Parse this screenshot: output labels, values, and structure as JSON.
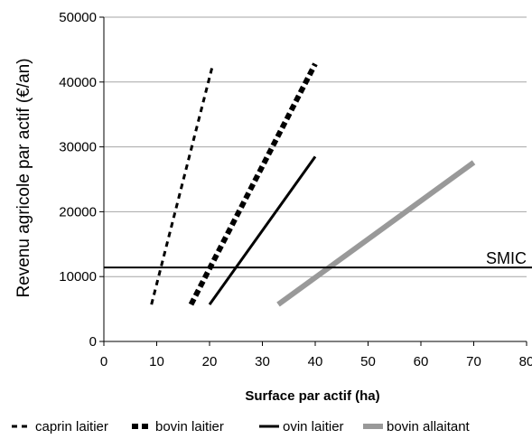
{
  "chart_data": {
    "type": "line",
    "xlabel": "Surface par actif (ha)",
    "ylabel": "Revenu agricole par actif (€/an)",
    "xlim": [
      0,
      80
    ],
    "ylim": [
      0,
      50000
    ],
    "x_ticks": [
      "0",
      "10",
      "20",
      "30",
      "40",
      "50",
      "60",
      "70",
      "80"
    ],
    "y_ticks": [
      "0",
      "10000",
      "20000",
      "30000",
      "40000",
      "50000"
    ],
    "grid": "horizontal",
    "legend_position": "bottom",
    "series": [
      {
        "name": "caprin laitier",
        "x": [
          9,
          20.5
        ],
        "y": [
          5700,
          42300
        ],
        "color": "#000000",
        "style": "dashed-thin"
      },
      {
        "name": "bovin laitier",
        "x": [
          16.5,
          40
        ],
        "y": [
          5700,
          42800
        ],
        "color": "#000000",
        "style": "dashed-thick"
      },
      {
        "name": "ovin laitier",
        "x": [
          20,
          40
        ],
        "y": [
          5700,
          28500
        ],
        "color": "#000000",
        "style": "solid"
      },
      {
        "name": "bovin allaitant",
        "x": [
          33,
          70
        ],
        "y": [
          5700,
          27600
        ],
        "color": "#999999",
        "style": "solid-thick"
      }
    ],
    "reference_lines": [
      {
        "label": "SMIC",
        "y": 11400,
        "color": "#000000"
      }
    ]
  }
}
